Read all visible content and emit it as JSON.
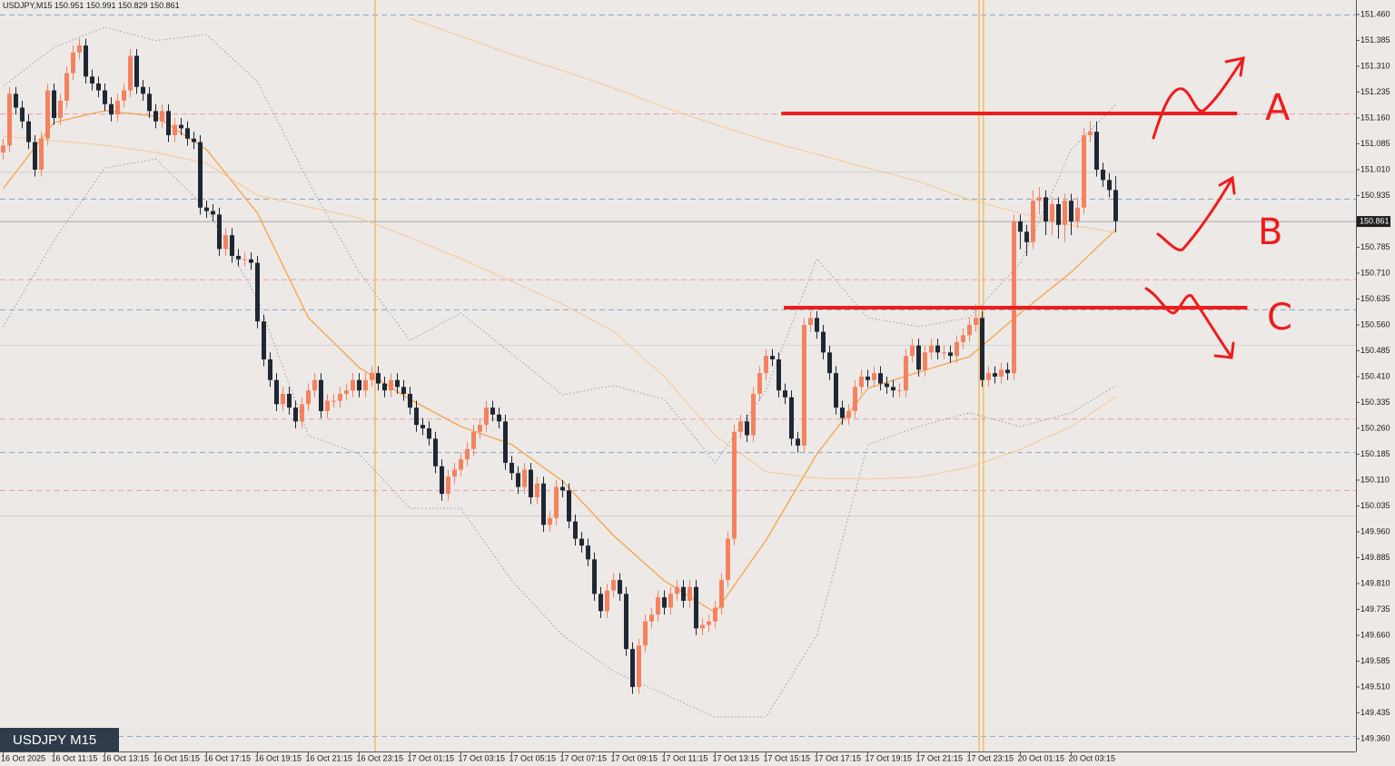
{
  "chart_data": {
    "type": "candlestick",
    "title": "USDJPY,M15",
    "badge": "USDJPY M15",
    "annotations": [
      "A",
      "B",
      "C"
    ],
    "up_color": "#f4825f",
    "down_color": "#1e2733",
    "ylim": [
      149.323,
      151.502
    ],
    "xlim": [
      -0.5,
      212.79
    ],
    "yticks": [
      {
        "value": 151.46,
        "label": "151.460"
      },
      {
        "value": 151.385,
        "label": "151.385"
      },
      {
        "value": 151.31,
        "label": "151.310"
      },
      {
        "value": 151.235,
        "label": "151.235"
      },
      {
        "value": 151.16,
        "label": "151.160"
      },
      {
        "value": 151.085,
        "label": "151.085"
      },
      {
        "value": 151.01,
        "label": "151.010"
      },
      {
        "value": 150.935,
        "label": "150.935"
      },
      {
        "value": 150.785,
        "label": "150.785"
      },
      {
        "value": 150.71,
        "label": "150.710"
      },
      {
        "value": 150.635,
        "label": "150.635"
      },
      {
        "value": 150.56,
        "label": "150.560"
      },
      {
        "value": 150.485,
        "label": "150.485"
      },
      {
        "value": 150.41,
        "label": "150.410"
      },
      {
        "value": 150.335,
        "label": "150.335"
      },
      {
        "value": 150.26,
        "label": "150.260"
      },
      {
        "value": 150.185,
        "label": "150.185"
      },
      {
        "value": 150.11,
        "label": "150.110"
      },
      {
        "value": 150.035,
        "label": "150.035"
      },
      {
        "value": 149.96,
        "label": "149.960"
      },
      {
        "value": 149.885,
        "label": "149.885"
      },
      {
        "value": 149.81,
        "label": "149.810"
      },
      {
        "value": 149.735,
        "label": "149.735"
      },
      {
        "value": 149.66,
        "label": "149.660"
      },
      {
        "value": 149.585,
        "label": "149.585"
      },
      {
        "value": 149.51,
        "label": "149.510"
      },
      {
        "value": 149.435,
        "label": "149.435"
      },
      {
        "value": 149.36,
        "label": "149.360"
      }
    ],
    "xticks": [
      {
        "value": 0,
        "label": "16 Oct 2025"
      },
      {
        "value": 8,
        "label": "16 Oct 11:15"
      },
      {
        "value": 16,
        "label": "16 Oct 13:15"
      },
      {
        "value": 24,
        "label": "16 Oct 15:15"
      },
      {
        "value": 32,
        "label": "16 Oct 17:15"
      },
      {
        "value": 40,
        "label": "16 Oct 19:15"
      },
      {
        "value": 48,
        "label": "16 Oct 21:15"
      },
      {
        "value": 56,
        "label": "16 Oct 23:15"
      },
      {
        "value": 64,
        "label": "17 Oct 01:15"
      },
      {
        "value": 72,
        "label": "17 Oct 03:15"
      },
      {
        "value": 80,
        "label": "17 Oct 05:15"
      },
      {
        "value": 88,
        "label": "17 Oct 07:15"
      },
      {
        "value": 96,
        "label": "17 Oct 09:15"
      },
      {
        "value": 104,
        "label": "17 Oct 11:15"
      },
      {
        "value": 112,
        "label": "17 Oct 13:15"
      },
      {
        "value": 120,
        "label": "17 Oct 15:15"
      },
      {
        "value": 128,
        "label": "17 Oct 17:15"
      },
      {
        "value": 136,
        "label": "17 Oct 19:15"
      },
      {
        "value": 144,
        "label": "17 Oct 21:15"
      },
      {
        "value": 152,
        "label": "17 Oct 23:15"
      },
      {
        "value": 160,
        "label": "20 Oct 01:15"
      },
      {
        "value": 168,
        "label": "20 Oct 03:15"
      }
    ],
    "open": [
      151.06,
      151.08,
      151.23,
      151.19,
      151.15,
      151.09,
      151.01,
      151.1,
      151.24,
      151.16,
      151.21,
      151.29,
      151.35,
      151.37,
      151.28,
      151.26,
      151.24,
      151.2,
      151.17,
      151.21,
      151.24,
      151.34,
      151.25,
      151.23,
      151.18,
      151.15,
      151.18,
      151.11,
      151.14,
      151.13,
      151.1,
      151.09,
      150.9,
      150.89,
      150.88,
      150.78,
      150.82,
      150.76,
      150.75,
      150.75,
      150.74,
      150.57,
      150.46,
      150.4,
      150.33,
      150.36,
      150.32,
      150.28,
      150.33,
      150.37,
      150.4,
      150.31,
      150.34,
      150.34,
      150.36,
      150.37,
      150.4,
      150.37,
      150.4,
      150.42,
      150.39,
      150.37,
      150.4,
      150.38,
      150.36,
      150.32,
      150.27,
      150.26,
      150.23,
      150.15,
      150.07,
      150.12,
      150.14,
      150.17,
      150.2,
      150.25,
      150.27,
      150.32,
      150.3,
      150.28,
      150.16,
      150.13,
      150.09,
      150.14,
      150.06,
      150.1,
      149.98,
      150.0,
      150.09,
      150.08,
      149.99,
      149.94,
      149.92,
      149.88,
      149.78,
      149.73,
      149.79,
      149.82,
      149.78,
      149.62,
      149.51,
      149.63,
      149.7,
      149.72,
      149.77,
      149.74,
      149.78,
      149.8,
      149.76,
      149.8,
      149.68,
      149.69,
      149.7,
      149.74,
      149.82,
      149.94,
      150.25,
      150.28,
      150.24,
      150.36,
      150.42,
      150.47,
      150.46,
      150.37,
      150.35,
      150.23,
      150.21,
      150.56,
      150.58,
      150.54,
      150.48,
      150.42,
      150.32,
      150.29,
      150.31,
      150.38,
      150.41,
      150.4,
      150.42,
      150.39,
      150.38,
      150.37,
      150.37,
      150.47,
      150.5,
      150.43,
      150.48,
      150.5,
      150.48,
      150.48,
      150.47,
      150.51,
      150.53,
      150.56,
      150.58,
      150.4,
      150.42,
      150.41,
      150.43,
      150.42,
      150.86,
      150.83,
      150.8,
      150.92,
      150.93,
      150.86,
      150.91,
      150.85,
      150.92,
      150.86,
      150.9,
      151.11,
      151.12,
      151.01,
      150.98,
      150.951
    ],
    "high": [
      151.1,
      151.25,
      151.25,
      151.21,
      151.17,
      151.11,
      151.12,
      151.26,
      151.26,
      151.23,
      151.31,
      151.37,
      151.39,
      151.39,
      151.3,
      151.28,
      151.26,
      151.22,
      151.23,
      151.26,
      151.36,
      151.36,
      151.27,
      151.25,
      151.2,
      151.2,
      151.2,
      151.16,
      151.16,
      151.15,
      151.12,
      151.11,
      150.92,
      150.91,
      150.9,
      150.84,
      150.84,
      150.78,
      150.77,
      150.77,
      150.76,
      150.59,
      150.48,
      150.42,
      150.38,
      150.38,
      150.34,
      150.35,
      150.39,
      150.42,
      150.42,
      150.36,
      150.36,
      150.38,
      150.39,
      150.42,
      150.42,
      150.42,
      150.44,
      150.44,
      150.41,
      150.42,
      150.42,
      150.4,
      150.38,
      150.34,
      150.29,
      150.28,
      150.25,
      150.17,
      150.14,
      150.16,
      150.19,
      150.22,
      150.27,
      150.29,
      150.34,
      150.34,
      150.32,
      150.3,
      150.18,
      150.15,
      150.16,
      150.16,
      150.12,
      150.12,
      150.02,
      150.11,
      150.11,
      150.1,
      150.01,
      149.96,
      149.94,
      149.9,
      149.8,
      149.81,
      149.84,
      149.84,
      149.8,
      149.64,
      149.65,
      149.72,
      149.74,
      149.79,
      149.79,
      149.8,
      149.82,
      149.82,
      149.82,
      149.82,
      149.71,
      149.72,
      149.76,
      149.84,
      149.96,
      150.27,
      150.3,
      150.3,
      150.38,
      150.44,
      150.49,
      150.49,
      150.48,
      150.39,
      150.37,
      150.25,
      150.58,
      150.6,
      150.6,
      150.56,
      150.5,
      150.44,
      150.34,
      150.33,
      150.4,
      150.43,
      150.43,
      150.44,
      150.44,
      150.41,
      150.4,
      150.39,
      150.49,
      150.52,
      150.52,
      150.5,
      150.52,
      150.52,
      150.5,
      150.5,
      150.53,
      150.55,
      150.58,
      150.62,
      150.6,
      150.44,
      150.44,
      150.45,
      150.45,
      150.88,
      150.88,
      150.85,
      150.95,
      150.96,
      150.95,
      150.93,
      150.93,
      150.94,
      150.94,
      150.93,
      151.13,
      151.15,
      151.15,
      151.03,
      151.0,
      150.991
    ],
    "low": [
      151.04,
      151.06,
      151.17,
      151.13,
      151.07,
      150.99,
      150.99,
      151.08,
      151.14,
      151.14,
      151.19,
      151.27,
      151.33,
      151.26,
      151.24,
      151.22,
      151.18,
      151.15,
      151.15,
      151.19,
      151.22,
      151.23,
      151.21,
      151.16,
      151.13,
      151.13,
      151.09,
      151.09,
      151.11,
      151.08,
      151.07,
      150.88,
      150.87,
      150.86,
      150.76,
      150.76,
      150.74,
      150.73,
      150.73,
      150.72,
      150.55,
      150.44,
      150.38,
      150.31,
      150.31,
      150.3,
      150.26,
      150.26,
      150.31,
      150.35,
      150.29,
      150.29,
      150.32,
      150.32,
      150.34,
      150.35,
      150.35,
      150.35,
      150.38,
      150.37,
      150.35,
      150.35,
      150.36,
      150.34,
      150.3,
      150.25,
      150.24,
      150.21,
      150.13,
      150.05,
      150.05,
      150.1,
      150.12,
      150.15,
      150.18,
      150.23,
      150.25,
      150.28,
      150.26,
      150.14,
      150.11,
      150.07,
      150.07,
      150.04,
      150.04,
      149.96,
      149.96,
      149.98,
      150.06,
      149.97,
      149.92,
      149.9,
      149.86,
      149.76,
      149.71,
      149.71,
      149.77,
      149.76,
      149.6,
      149.49,
      149.49,
      149.61,
      149.68,
      149.7,
      149.72,
      149.72,
      149.76,
      149.74,
      149.74,
      149.66,
      149.66,
      149.67,
      149.68,
      149.72,
      149.8,
      149.92,
      150.23,
      150.22,
      150.22,
      150.34,
      150.4,
      150.44,
      150.35,
      150.33,
      150.21,
      150.19,
      150.19,
      150.54,
      150.52,
      150.46,
      150.4,
      150.3,
      150.27,
      150.27,
      150.29,
      150.36,
      150.38,
      150.38,
      150.37,
      150.36,
      150.35,
      150.35,
      150.35,
      150.45,
      150.41,
      150.41,
      150.46,
      150.46,
      150.46,
      150.45,
      150.45,
      150.49,
      150.51,
      150.54,
      150.38,
      150.38,
      150.39,
      150.39,
      150.4,
      150.4,
      150.78,
      150.76,
      150.78,
      150.88,
      150.82,
      150.82,
      150.81,
      150.8,
      150.82,
      150.84,
      150.88,
      151.09,
      150.99,
      150.96,
      150.93,
      150.829
    ],
    "close": [
      151.08,
      151.23,
      151.19,
      151.15,
      151.09,
      151.01,
      151.1,
      151.24,
      151.16,
      151.21,
      151.29,
      151.35,
      151.37,
      151.28,
      151.26,
      151.24,
      151.2,
      151.17,
      151.21,
      151.24,
      151.34,
      151.25,
      151.23,
      151.18,
      151.15,
      151.18,
      151.11,
      151.14,
      151.13,
      151.1,
      151.09,
      150.9,
      150.89,
      150.88,
      150.78,
      150.82,
      150.76,
      150.75,
      150.75,
      150.74,
      150.57,
      150.46,
      150.4,
      150.33,
      150.36,
      150.32,
      150.28,
      150.33,
      150.37,
      150.4,
      150.31,
      150.34,
      150.34,
      150.36,
      150.37,
      150.4,
      150.37,
      150.4,
      150.42,
      150.39,
      150.37,
      150.4,
      150.38,
      150.36,
      150.32,
      150.27,
      150.26,
      150.23,
      150.15,
      150.07,
      150.12,
      150.14,
      150.17,
      150.2,
      150.25,
      150.27,
      150.32,
      150.3,
      150.28,
      150.16,
      150.13,
      150.09,
      150.14,
      150.06,
      150.1,
      149.98,
      150.0,
      150.09,
      150.08,
      149.99,
      149.94,
      149.92,
      149.88,
      149.78,
      149.73,
      149.79,
      149.82,
      149.78,
      149.62,
      149.51,
      149.63,
      149.7,
      149.72,
      149.77,
      149.74,
      149.78,
      149.8,
      149.76,
      149.8,
      149.68,
      149.69,
      149.7,
      149.74,
      149.82,
      149.94,
      150.25,
      150.28,
      150.24,
      150.36,
      150.42,
      150.47,
      150.46,
      150.37,
      150.35,
      150.23,
      150.21,
      150.56,
      150.58,
      150.54,
      150.48,
      150.42,
      150.32,
      150.29,
      150.31,
      150.38,
      150.41,
      150.4,
      150.42,
      150.39,
      150.38,
      150.37,
      150.37,
      150.47,
      150.5,
      150.43,
      150.48,
      150.5,
      150.48,
      150.48,
      150.47,
      150.51,
      150.53,
      150.56,
      150.58,
      150.4,
      150.42,
      150.41,
      150.43,
      150.42,
      150.86,
      150.83,
      150.8,
      150.92,
      150.93,
      150.86,
      150.91,
      150.85,
      150.92,
      150.86,
      150.9,
      151.11,
      151.12,
      151.01,
      150.98,
      150.951,
      150.861
    ],
    "overlay_x": [
      0,
      8,
      16,
      24,
      32,
      40,
      48,
      56,
      64,
      72,
      80,
      88,
      96,
      104,
      112,
      120,
      128,
      136,
      144,
      152,
      160,
      168,
      175
    ],
    "overlays": [
      {
        "color": "#f7a34a",
        "dash": false,
        "width": 1.3,
        "values": [
          150.955,
          151.147,
          151.181,
          151.165,
          151.068,
          150.884,
          150.581,
          150.436,
          150.344,
          150.265,
          150.213,
          150.107,
          149.949,
          149.818,
          149.726,
          149.936,
          150.186,
          150.376,
          150.423,
          150.468,
          150.594,
          150.713,
          150.836
        ]
      },
      {
        "color": "#f8c78f",
        "dash": false,
        "width": 1,
        "values": [
          151.107,
          151.094,
          151.081,
          151.06,
          151.028,
          150.936,
          150.902,
          150.87,
          150.813,
          150.752,
          150.686,
          150.62,
          150.541,
          150.41,
          150.239,
          150.134,
          150.115,
          150.113,
          150.118,
          150.147,
          150.199,
          150.265,
          150.352
        ]
      },
      {
        "color": "#f8c78f",
        "dash": false,
        "width": 1,
        "values": [
          null,
          null,
          null,
          null,
          null,
          null,
          null,
          null,
          151.449,
          151.397,
          151.344,
          151.297,
          151.247,
          151.191,
          151.141,
          151.094,
          151.055,
          151.015,
          150.976,
          150.923,
          150.884,
          150.849,
          150.828
        ]
      },
      {
        "color": "#9a9a9a",
        "dash": true,
        "width": 1,
        "values": [
          151.252,
          151.365,
          151.423,
          151.384,
          151.402,
          151.265,
          150.976,
          150.713,
          150.515,
          150.594,
          150.476,
          150.357,
          150.384,
          150.344,
          150.16,
          150.37,
          150.752,
          150.581,
          150.555,
          150.581,
          150.739,
          151.068,
          151.199
        ]
      },
      {
        "color": "#9a9a9a",
        "dash": true,
        "width": 1,
        "values": [
          150.555,
          150.805,
          151.015,
          151.041,
          150.897,
          150.634,
          150.239,
          150.186,
          150.028,
          150.028,
          149.818,
          149.66,
          149.555,
          149.489,
          149.423,
          149.423,
          149.66,
          150.213,
          150.265,
          150.305,
          150.265,
          150.305,
          150.384
        ]
      }
    ],
    "levels": [
      {
        "value": 151.46,
        "color": "#8ea5bd",
        "dash": true
      },
      {
        "value": 150.926,
        "color": "#8ea5bd",
        "dash": true
      },
      {
        "value": 150.605,
        "color": "#8ea5bd",
        "dash": true
      },
      {
        "value": 150.191,
        "color": "#8ea5bd",
        "dash": true
      },
      {
        "value": 149.368,
        "color": "#8ea5bd",
        "dash": true
      },
      {
        "value": 151.173,
        "color": "#e8a0ac",
        "dash": true
      },
      {
        "value": 150.692,
        "color": "#e8a0ac",
        "dash": true
      },
      {
        "value": 150.288,
        "color": "#e8a0ac",
        "dash": true
      },
      {
        "value": 150.081,
        "color": "#e8a0ac",
        "dash": true
      },
      {
        "value": 151.004,
        "color": "#cfcfcf",
        "dash": false
      },
      {
        "value": 150.502,
        "color": "#d6d6d6",
        "dash": false
      },
      {
        "value": 150.007,
        "color": "#cfcfcf",
        "dash": false
      }
    ],
    "vlines": {
      "color": "#f5a623",
      "values": [
        58.5,
        153.5,
        154.2
      ]
    },
    "drawings": {
      "color": "#ee1c1c",
      "lines": [
        {
          "value": 151.173,
          "x": [
            122.4,
            194.1
          ]
        },
        {
          "value": 150.61,
          "x": [
            122.8,
            195.7
          ]
        }
      ]
    }
  }
}
